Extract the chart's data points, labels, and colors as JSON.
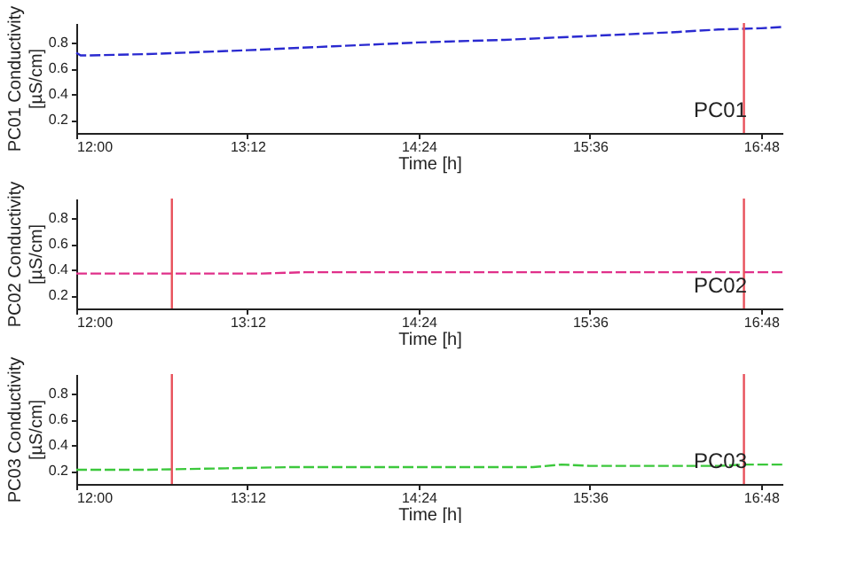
{
  "chart_data": [
    {
      "type": "line",
      "xlabel": "Time [h]",
      "ylabel": "PC01 Conductivity [µS/cm]",
      "annotations": [
        "PC01"
      ],
      "series": [
        {
          "color": "#2a2ad0",
          "x": [
            12.0,
            12.03,
            12.1,
            12.5,
            13.2,
            13.8,
            14.4,
            15.0,
            15.6,
            16.2,
            16.5,
            16.8,
            16.95
          ],
          "values": [
            0.72,
            0.7,
            0.7,
            0.71,
            0.74,
            0.77,
            0.8,
            0.82,
            0.85,
            0.88,
            0.9,
            0.91,
            0.92
          ]
        }
      ],
      "xlim": [
        12,
        16.95
      ],
      "xticks": [
        {
          "value": 12,
          "label": "12:00"
        },
        {
          "value": 13.2,
          "label": "13:12"
        },
        {
          "value": 14.4,
          "label": "14:24"
        },
        {
          "value": 15.6,
          "label": "15:36"
        },
        {
          "value": 16.8,
          "label": "16:48"
        }
      ],
      "ylim": [
        0.1,
        0.95
      ],
      "yticks": [
        0.2,
        0.4,
        0.6,
        0.8
      ],
      "grid": false,
      "line_style": "dashed",
      "ref_lines": [
        {
          "axis": "x",
          "value": 16.68,
          "color": "#e8505a"
        }
      ]
    },
    {
      "type": "line",
      "xlabel": "Time [h]",
      "ylabel": "PC02 Conductivity [µS/cm]",
      "annotations": [
        "PC02"
      ],
      "series": [
        {
          "color": "#e0308a",
          "x": [
            12.0,
            12.5,
            13.0,
            13.3,
            13.6,
            14.0,
            14.4,
            15.0,
            15.6,
            16.0,
            16.5,
            16.95
          ],
          "values": [
            0.37,
            0.37,
            0.37,
            0.37,
            0.38,
            0.38,
            0.38,
            0.38,
            0.38,
            0.38,
            0.38,
            0.38
          ]
        }
      ],
      "xlim": [
        12,
        16.95
      ],
      "xticks": [
        {
          "value": 12,
          "label": "12:00"
        },
        {
          "value": 13.2,
          "label": "13:12"
        },
        {
          "value": 14.4,
          "label": "14:24"
        },
        {
          "value": 15.6,
          "label": "15:36"
        },
        {
          "value": 16.8,
          "label": "16:48"
        }
      ],
      "ylim": [
        0.1,
        0.95
      ],
      "yticks": [
        0.2,
        0.4,
        0.6,
        0.8
      ],
      "grid": false,
      "line_style": "dashed",
      "ref_lines": [
        {
          "axis": "x",
          "value": 12.67,
          "color": "#e8505a"
        },
        {
          "axis": "x",
          "value": 16.68,
          "color": "#e8505a"
        }
      ]
    },
    {
      "type": "line",
      "xlabel": "Time [h]",
      "ylabel": "PC03 Conductivity [µS/cm]",
      "annotations": [
        "PC03"
      ],
      "series": [
        {
          "color": "#3cc83c",
          "x": [
            12.0,
            12.5,
            13.0,
            13.5,
            14.0,
            14.4,
            14.8,
            15.2,
            15.4,
            15.6,
            16.0,
            16.5,
            16.7,
            16.95
          ],
          "values": [
            0.21,
            0.21,
            0.22,
            0.23,
            0.23,
            0.23,
            0.23,
            0.23,
            0.25,
            0.24,
            0.24,
            0.24,
            0.25,
            0.25
          ]
        }
      ],
      "xlim": [
        12,
        16.95
      ],
      "xticks": [
        {
          "value": 12,
          "label": "12:00"
        },
        {
          "value": 13.2,
          "label": "13:12"
        },
        {
          "value": 14.4,
          "label": "14:24"
        },
        {
          "value": 15.6,
          "label": "15:36"
        },
        {
          "value": 16.8,
          "label": "16:48"
        }
      ],
      "ylim": [
        0.1,
        0.95
      ],
      "yticks": [
        0.2,
        0.4,
        0.6,
        0.8
      ],
      "grid": false,
      "line_style": "dashed",
      "ref_lines": [
        {
          "axis": "x",
          "value": 12.67,
          "color": "#e8505a"
        },
        {
          "axis": "x",
          "value": 16.68,
          "color": "#e8505a"
        }
      ]
    }
  ]
}
